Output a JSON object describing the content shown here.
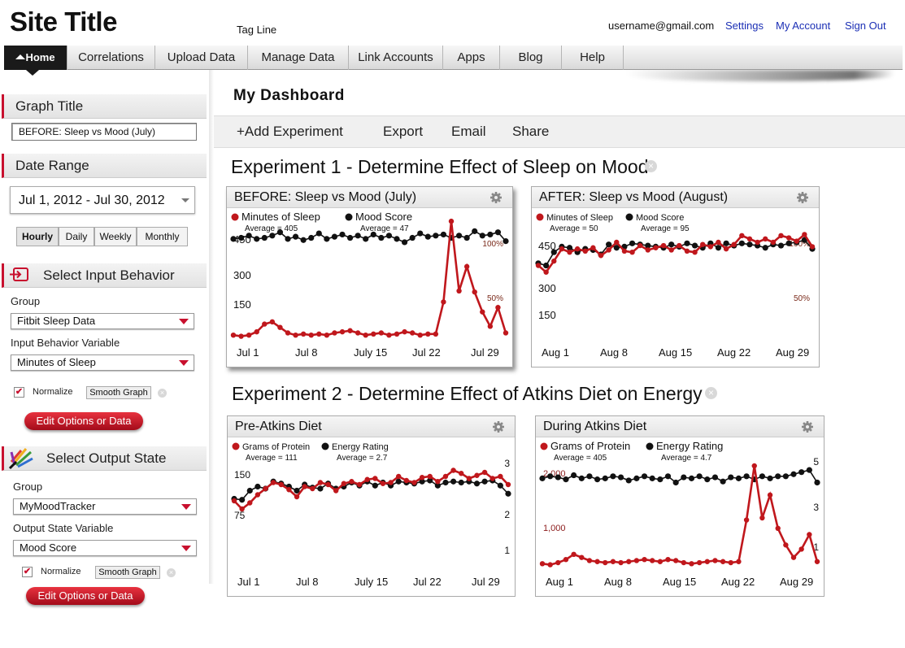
{
  "header": {
    "site_title": "Site Title",
    "tagline": "Tag Line",
    "email": "username@gmail.com",
    "links": [
      "Settings",
      "My Account",
      "Sign Out"
    ]
  },
  "nav": {
    "home": "Home",
    "items": [
      "Correlations",
      "Upload Data",
      "Manage Data",
      "Link Accounts",
      "Apps",
      "Blog",
      "Help"
    ]
  },
  "sidebar": {
    "graph_title_header": "Graph Title",
    "graph_title_value": "BEFORE: Sleep vs Mood (July)",
    "date_range_header": "Date Range",
    "date_range_value": "Jul 1, 2012 - Jul 30, 2012",
    "granularity": [
      "Hourly",
      "Daily",
      "Weekly",
      "Monthly"
    ],
    "input": {
      "header": "Select Input Behavior",
      "group_label": "Group",
      "group_value": "Fitbit Sleep Data",
      "variable_label": "Input Behavior Variable",
      "variable_value": "Minutes of Sleep",
      "normalize": "Normalize",
      "smooth": "Smooth Graph",
      "edit": "Edit Options or Data"
    },
    "output": {
      "header": "Select Output State",
      "group_label": "Group",
      "group_value": "MyMoodTracker",
      "variable_label": "Output State Variable",
      "variable_value": "Mood Score",
      "normalize": "Normalize",
      "smooth": "Smooth Graph",
      "edit": "Edit Options or Data"
    }
  },
  "dashboard": {
    "title": "My Dashboard",
    "actions": [
      "+Add Experiment",
      "Export",
      "Email",
      "Share"
    ],
    "experiment1_title": "Experiment 1 - Determine Effect of Sleep on Mood",
    "experiment2_title": "Experiment 2 - Determine Effect of Atkins Diet on Energy"
  },
  "colors": {
    "accent": "#c8102e",
    "series_red": "#c0171c",
    "series_black": "#111111",
    "link": "#1b2fb5"
  },
  "chart_data": [
    {
      "type": "line",
      "title": "BEFORE: Sleep vs Mood (July)",
      "x_ticks": [
        "Jul 1",
        "Jul 8",
        "July 15",
        "Jul 22",
        "Jul 29"
      ],
      "left_ticks": [
        "450",
        "300",
        "150"
      ],
      "right_ticks": [
        "100%",
        "50%"
      ],
      "series": [
        {
          "name": "Minutes of Sleep",
          "sub": "Average = 405",
          "axis": "left",
          "values": [
            0.05,
            0.04,
            0.05,
            0.08,
            0.15,
            0.17,
            0.12,
            0.07,
            0.05,
            0.06,
            0.05,
            0.06,
            0.05,
            0.07,
            0.08,
            0.09,
            0.07,
            0.05,
            0.06,
            0.07,
            0.05,
            0.06,
            0.08,
            0.07,
            0.05,
            0.06,
            0.06,
            0.35,
            1.08,
            0.45,
            0.67,
            0.44,
            0.26,
            0.13,
            0.3,
            0.07
          ]
        },
        {
          "name": "Mood Score",
          "sub": "Average = 47",
          "axis": "right",
          "values": [
            0.92,
            0.93,
            0.95,
            0.92,
            0.93,
            0.95,
            0.98,
            0.92,
            0.94,
            0.91,
            0.93,
            0.97,
            0.92,
            0.94,
            0.96,
            0.93,
            0.95,
            0.92,
            0.96,
            0.93,
            0.95,
            0.92,
            0.89,
            0.93,
            0.97,
            0.94,
            0.95,
            0.96,
            0.93,
            0.95,
            0.93,
            0.99,
            0.95,
            0.96,
            0.98,
            0.9
          ]
        }
      ]
    },
    {
      "type": "line",
      "title": "AFTER:  Sleep vs Mood (August)",
      "x_ticks": [
        "Aug 1",
        "Aug 8",
        "Aug 15",
        "Aug 22",
        "Aug 29"
      ],
      "left_ticks": [
        "450",
        "300",
        "150"
      ],
      "right_ticks": [
        "100%",
        "50%"
      ],
      "series": [
        {
          "name": "Minutes of Sleep",
          "sub": "Average = 50",
          "axis": "left",
          "values": [
            0.68,
            0.62,
            0.72,
            0.83,
            0.8,
            0.83,
            0.81,
            0.84,
            0.77,
            0.82,
            0.89,
            0.81,
            0.8,
            0.86,
            0.82,
            0.84,
            0.86,
            0.82,
            0.86,
            0.81,
            0.8,
            0.87,
            0.85,
            0.89,
            0.83,
            0.87,
            0.95,
            0.92,
            0.89,
            0.92,
            0.89,
            0.95,
            0.93,
            0.9,
            0.96,
            0.85
          ]
        },
        {
          "name": "Mood Score",
          "sub": "Average = 95",
          "axis": "right",
          "values": [
            0.7,
            0.68,
            0.8,
            0.85,
            0.84,
            0.8,
            0.83,
            0.82,
            0.78,
            0.87,
            0.84,
            0.85,
            0.88,
            0.87,
            0.86,
            0.85,
            0.84,
            0.87,
            0.85,
            0.88,
            0.86,
            0.84,
            0.88,
            0.84,
            0.88,
            0.86,
            0.88,
            0.87,
            0.86,
            0.84,
            0.87,
            0.86,
            0.88,
            0.89,
            0.91,
            0.83
          ]
        }
      ]
    },
    {
      "type": "line",
      "title": "Pre-Atkins Diet",
      "x_ticks": [
        "Jul 1",
        "Jul 8",
        "July 15",
        "Jul 22",
        "Jul 29"
      ],
      "left_ticks": [
        "150",
        "75"
      ],
      "right_ticks": [
        "3",
        "2",
        "1"
      ],
      "series": [
        {
          "name": "Grams of Protein",
          "sub": "Average = 111",
          "axis": "left",
          "values": [
            0.68,
            0.6,
            0.66,
            0.74,
            0.8,
            0.86,
            0.84,
            0.79,
            0.72,
            0.82,
            0.8,
            0.86,
            0.84,
            0.78,
            0.85,
            0.87,
            0.84,
            0.89,
            0.9,
            0.85,
            0.86,
            0.92,
            0.88,
            0.86,
            0.91,
            0.92,
            0.87,
            0.92,
            0.98,
            0.95,
            0.9,
            0.93,
            0.96,
            0.9,
            0.92,
            0.84
          ]
        },
        {
          "name": "Energy Rating",
          "sub": "Average = 2.7",
          "axis": "right",
          "values": [
            0.7,
            0.69,
            0.78,
            0.82,
            0.8,
            0.87,
            0.85,
            0.82,
            0.78,
            0.84,
            0.81,
            0.8,
            0.85,
            0.8,
            0.82,
            0.86,
            0.83,
            0.87,
            0.83,
            0.86,
            0.83,
            0.87,
            0.86,
            0.85,
            0.87,
            0.88,
            0.83,
            0.86,
            0.87,
            0.86,
            0.87,
            0.85,
            0.87,
            0.88,
            0.83,
            0.75
          ]
        }
      ]
    },
    {
      "type": "line",
      "title": "During Atkins Diet",
      "x_ticks": [
        "Aug 1",
        "Aug 8",
        "Aug 15",
        "Aug 22",
        "Aug 29"
      ],
      "left_ticks": [
        "2,000",
        "1,000"
      ],
      "right_ticks": [
        "5",
        "3",
        "1"
      ],
      "series": [
        {
          "name": "Grams of Protein",
          "sub": "Average = 405",
          "axis": "left",
          "values": [
            0.06,
            0.05,
            0.07,
            0.1,
            0.15,
            0.12,
            0.09,
            0.08,
            0.07,
            0.08,
            0.07,
            0.08,
            0.09,
            0.1,
            0.09,
            0.08,
            0.1,
            0.09,
            0.07,
            0.06,
            0.07,
            0.08,
            0.09,
            0.08,
            0.07,
            0.08,
            0.48,
            1.0,
            0.5,
            0.72,
            0.4,
            0.24,
            0.12,
            0.2,
            0.34,
            0.08
          ]
        },
        {
          "name": "Energy Rating",
          "sub": "Average = 4.7",
          "axis": "right",
          "values": [
            0.88,
            0.9,
            0.89,
            0.87,
            0.91,
            0.88,
            0.9,
            0.87,
            0.88,
            0.9,
            0.89,
            0.86,
            0.88,
            0.9,
            0.88,
            0.87,
            0.9,
            0.84,
            0.89,
            0.88,
            0.9,
            0.87,
            0.89,
            0.85,
            0.89,
            0.88,
            0.9,
            0.87,
            0.9,
            0.88,
            0.9,
            0.9,
            0.92,
            0.94,
            0.96,
            0.84
          ]
        }
      ]
    }
  ]
}
